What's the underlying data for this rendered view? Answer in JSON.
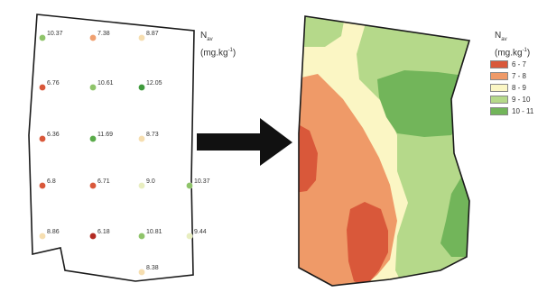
{
  "left_map": {
    "unit_symbol": "N",
    "unit_subscript": "av",
    "unit_text": "(mg.kg",
    "unit_sup": "-1",
    "unit_close": ")",
    "samples": [
      {
        "label": "10.37",
        "color": "#8fc46a"
      },
      {
        "label": "7.38",
        "color": "#f0a070"
      },
      {
        "label": "8.87",
        "color": "#f6deb0"
      },
      {
        "label": "6.76",
        "color": "#d9583a"
      },
      {
        "label": "10.61",
        "color": "#8fc46a"
      },
      {
        "label": "12.05",
        "color": "#3f9a3c"
      },
      {
        "label": "6.36",
        "color": "#d9583a"
      },
      {
        "label": "11.69",
        "color": "#5aab4a"
      },
      {
        "label": "8.73",
        "color": "#f6deb0"
      },
      {
        "label": "6.8",
        "color": "#d9583a"
      },
      {
        "label": "6.71",
        "color": "#d9583a"
      },
      {
        "label": "9.0",
        "color": "#e8eec0"
      },
      {
        "label": "10.37",
        "color": "#8fc46a"
      },
      {
        "label": "8.86",
        "color": "#f6deb0"
      },
      {
        "label": "6.18",
        "color": "#b22a22"
      },
      {
        "label": "10.81",
        "color": "#8fc46a"
      },
      {
        "label": "9.44",
        "color": "#e8eec0"
      },
      {
        "label": "8.38",
        "color": "#f6deb0"
      }
    ]
  },
  "arrow": {
    "color": "#111111"
  },
  "right_map": {
    "unit_symbol": "N",
    "unit_subscript": "av",
    "unit_text": "(mg.kg",
    "unit_sup": "-1",
    "unit_close": ")",
    "legend": [
      {
        "label": "6 - 7",
        "color": "#d9583a"
      },
      {
        "label": "7 - 8",
        "color": "#ef9a68"
      },
      {
        "label": "8 - 9",
        "color": "#fbf6c4"
      },
      {
        "label": "9 - 10",
        "color": "#b5d98a"
      },
      {
        "label": "10 - 11",
        "color": "#72b55a"
      }
    ],
    "zone_colors": {
      "c67": "#d9583a",
      "c78": "#ef9a68",
      "c89": "#fbf6c4",
      "c910": "#b5d98a",
      "c1011": "#72b55a"
    }
  }
}
